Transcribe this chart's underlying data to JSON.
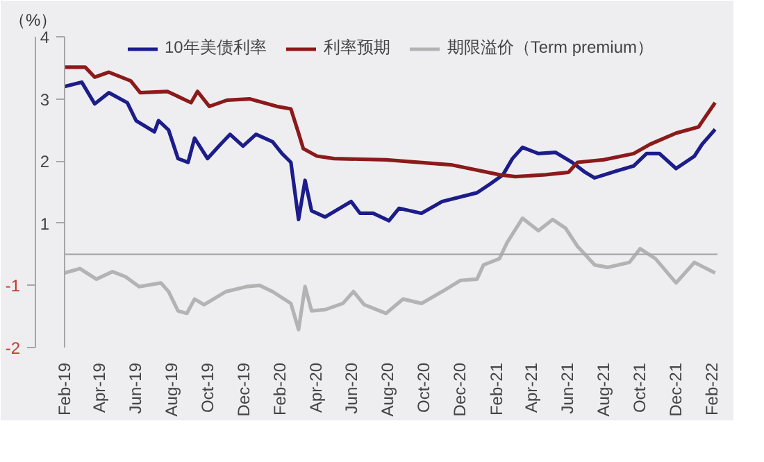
{
  "chart_data": {
    "type": "line",
    "ylabel": "（%）",
    "legend": "top",
    "marker": "none",
    "line_style": "solid",
    "grid": false,
    "xlim": [
      "2019-02-01",
      "2022-02-10"
    ],
    "xticks": [
      {
        "value": "2019-02-01",
        "label": "Feb-19"
      },
      {
        "value": "2019-04-01",
        "label": "Apr-19"
      },
      {
        "value": "2019-06-01",
        "label": "Jun-19"
      },
      {
        "value": "2019-08-01",
        "label": "Aug-19"
      },
      {
        "value": "2019-10-01",
        "label": "Oct-19"
      },
      {
        "value": "2019-12-01",
        "label": "Dec-19"
      },
      {
        "value": "2020-02-01",
        "label": "Feb-20"
      },
      {
        "value": "2020-04-01",
        "label": "Apr-20"
      },
      {
        "value": "2020-06-01",
        "label": "Jun-20"
      },
      {
        "value": "2020-08-01",
        "label": "Aug-20"
      },
      {
        "value": "2020-10-01",
        "label": "Oct-20"
      },
      {
        "value": "2020-12-01",
        "label": "Dec-20"
      },
      {
        "value": "2021-02-01",
        "label": "Feb-21"
      },
      {
        "value": "2021-04-01",
        "label": "Apr-21"
      },
      {
        "value": "2021-06-01",
        "label": "Jun-21"
      },
      {
        "value": "2021-08-01",
        "label": "Aug-21"
      },
      {
        "value": "2021-10-01",
        "label": "Oct-21"
      },
      {
        "value": "2021-12-01",
        "label": "Dec-21"
      },
      {
        "value": "2022-02-01",
        "label": "Feb-22"
      }
    ],
    "ylim": [
      -1,
      4
    ],
    "yticks": [
      1,
      2,
      3,
      4
    ],
    "y2lim": [
      -2,
      3
    ],
    "y2ticks": [
      -2,
      -1
    ],
    "ref_lines": [
      {
        "axis": "y",
        "value": 0.5,
        "color": "#a6a6a6"
      }
    ],
    "series": [
      {
        "name": "10年美债利率",
        "color": "#1c1c8a",
        "x": [
          "2019-02-01",
          "2019-03-02",
          "2019-03-24",
          "2019-04-17",
          "2019-05-18",
          "2019-06-02",
          "2019-07-03",
          "2019-07-10",
          "2019-07-27",
          "2019-08-12",
          "2019-08-29",
          "2019-09-09",
          "2019-10-01",
          "2019-10-23",
          "2019-11-08",
          "2019-11-30",
          "2019-12-22",
          "2020-01-19",
          "2020-02-04",
          "2020-02-19",
          "2020-03-03",
          "2020-03-14",
          "2020-03-25",
          "2020-04-17",
          "2020-05-31",
          "2020-06-15",
          "2020-07-07",
          "2020-08-03",
          "2020-08-20",
          "2020-09-27",
          "2020-11-01",
          "2020-12-30",
          "2021-01-21",
          "2021-02-12",
          "2021-02-28",
          "2021-03-17",
          "2021-04-13",
          "2021-05-12",
          "2021-06-09",
          "2021-07-01",
          "2021-07-17",
          "2021-08-23",
          "2021-09-21",
          "2021-10-13",
          "2021-11-04",
          "2021-12-02",
          "2022-01-02",
          "2022-01-15",
          "2022-02-06"
        ],
        "values": [
          3.2,
          3.27,
          2.92,
          3.1,
          2.94,
          2.65,
          2.47,
          2.65,
          2.5,
          2.04,
          1.98,
          2.37,
          2.04,
          2.27,
          2.43,
          2.24,
          2.43,
          2.31,
          2.12,
          1.98,
          1.06,
          1.69,
          1.2,
          1.1,
          1.35,
          1.16,
          1.16,
          1.04,
          1.24,
          1.16,
          1.35,
          1.49,
          1.63,
          1.78,
          2.04,
          2.22,
          2.12,
          2.14,
          1.98,
          1.82,
          1.73,
          1.84,
          1.92,
          2.12,
          2.12,
          1.88,
          2.08,
          2.27,
          2.51
        ]
      },
      {
        "name": "利率预期",
        "color": "#8b1a1a",
        "x": [
          "2019-02-01",
          "2019-03-08",
          "2019-03-24",
          "2019-04-17",
          "2019-05-24",
          "2019-06-09",
          "2019-07-25",
          "2019-09-03",
          "2019-09-14",
          "2019-10-04",
          "2019-11-03",
          "2019-12-11",
          "2020-01-26",
          "2020-02-19",
          "2020-03-03",
          "2020-03-11",
          "2020-04-03",
          "2020-05-02",
          "2020-07-29",
          "2020-11-16",
          "2021-02-06",
          "2021-03-05",
          "2021-04-25",
          "2021-06-03",
          "2021-06-18",
          "2021-08-01",
          "2021-09-21",
          "2021-10-19",
          "2021-12-02",
          "2022-01-09",
          "2022-02-06"
        ],
        "values": [
          3.51,
          3.51,
          3.35,
          3.43,
          3.29,
          3.1,
          3.12,
          2.94,
          3.12,
          2.88,
          2.98,
          3.0,
          2.88,
          2.84,
          2.45,
          2.2,
          2.08,
          2.04,
          2.02,
          1.94,
          1.78,
          1.75,
          1.78,
          1.82,
          1.98,
          2.02,
          2.12,
          2.27,
          2.45,
          2.55,
          2.94
        ]
      },
      {
        "name": "期限溢价（Term premium）",
        "color": "#b3b3b3",
        "axis": "y2",
        "x": [
          "2019-02-01",
          "2019-02-27",
          "2019-03-27",
          "2019-04-23",
          "2019-05-15",
          "2019-06-07",
          "2019-07-14",
          "2019-07-27",
          "2019-08-12",
          "2019-08-27",
          "2019-09-09",
          "2019-09-25",
          "2019-11-01",
          "2019-12-06",
          "2019-12-28",
          "2020-01-19",
          "2020-02-19",
          "2020-03-03",
          "2020-03-14",
          "2020-03-25",
          "2020-04-17",
          "2020-05-17",
          "2020-06-04",
          "2020-06-22",
          "2020-07-29",
          "2020-08-27",
          "2020-09-27",
          "2020-11-01",
          "2020-12-02",
          "2020-12-30",
          "2021-01-10",
          "2021-02-06",
          "2021-02-19",
          "2021-03-17",
          "2021-04-13",
          "2021-05-07",
          "2021-05-29",
          "2021-06-18",
          "2021-07-17",
          "2021-08-08",
          "2021-09-14",
          "2021-10-02",
          "2021-10-28",
          "2021-12-02",
          "2022-01-02",
          "2022-02-06"
        ],
        "values": [
          -0.8,
          -0.73,
          -0.9,
          -0.78,
          -0.86,
          -1.02,
          -0.96,
          -1.1,
          -1.41,
          -1.45,
          -1.22,
          -1.31,
          -1.1,
          -1.02,
          -1.0,
          -1.1,
          -1.29,
          -1.71,
          -1.02,
          -1.41,
          -1.39,
          -1.29,
          -1.1,
          -1.31,
          -1.45,
          -1.22,
          -1.29,
          -1.1,
          -0.92,
          -0.9,
          -0.67,
          -0.57,
          -0.31,
          0.08,
          -0.12,
          0.06,
          -0.08,
          -0.37,
          -0.67,
          -0.71,
          -0.63,
          -0.41,
          -0.57,
          -0.96,
          -0.63,
          -0.8
        ]
      }
    ]
  }
}
